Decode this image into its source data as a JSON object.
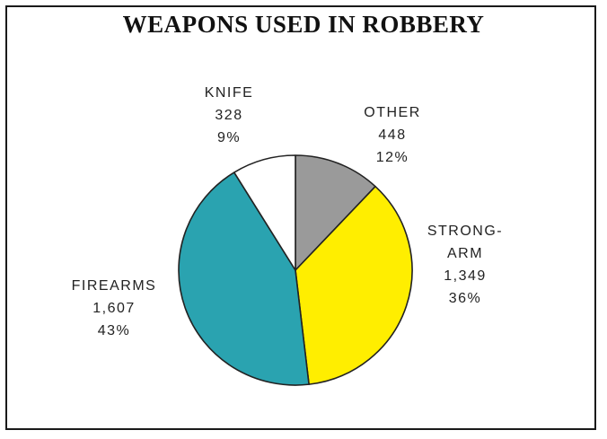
{
  "chart_data": {
    "type": "pie",
    "title": "WEAPONS USED IN ROBBERY",
    "slices": [
      {
        "label": "OTHER",
        "label_lines": [
          "OTHER"
        ],
        "value_text": "448",
        "value": 448,
        "percent_text": "12%",
        "color": "#9a9a9a"
      },
      {
        "label": "STRONG-ARM",
        "label_lines": [
          "STRONG-",
          "ARM"
        ],
        "value_text": "1,349",
        "value": 1349,
        "percent_text": "36%",
        "color": "#ffee00"
      },
      {
        "label": "FIREARMS",
        "label_lines": [
          "FIREARMS"
        ],
        "value_text": "1,607",
        "value": 1607,
        "percent_text": "43%",
        "color": "#2aa3b0"
      },
      {
        "label": "KNIFE",
        "label_lines": [
          "KNIFE"
        ],
        "value_text": "328",
        "value": 328,
        "percent_text": "9%",
        "color": "#ffffff"
      }
    ]
  }
}
